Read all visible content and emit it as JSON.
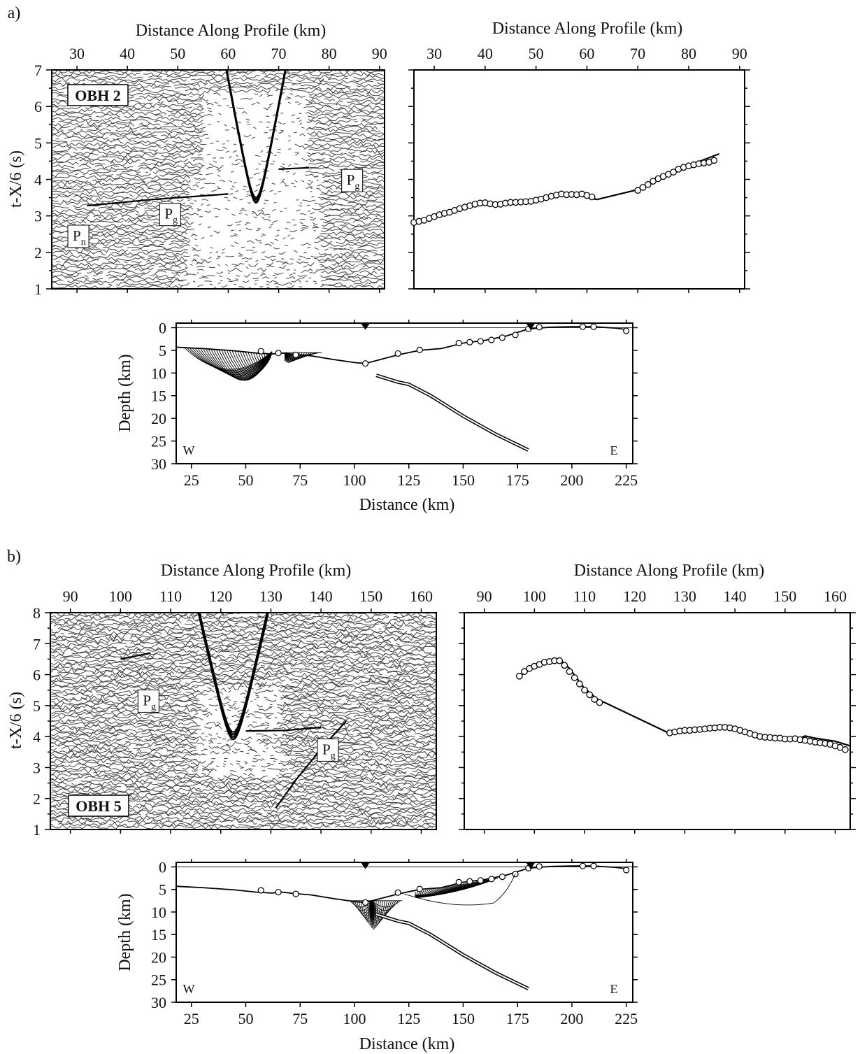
{
  "figure": {
    "panels": [
      {
        "label": "a)",
        "obh": "OBH 2",
        "top_axis_label": "Distance Along Profile (km)",
        "y_axis_label": "t-X/6 (s)",
        "phases": [
          {
            "main": "P",
            "sub": "n"
          },
          {
            "main": "P",
            "sub": "g"
          },
          {
            "main": "P",
            "sub": "g"
          }
        ],
        "depth_axis_label": "Depth (km)",
        "distance_axis_label": "Distance (km)",
        "west": "W",
        "east": "E"
      },
      {
        "label": "b)",
        "obh": "OBH 5",
        "top_axis_label": "Distance Along Profile (km)",
        "y_axis_label": "t-X/6 (s)",
        "phases": [
          {
            "main": "P",
            "sub": "g"
          },
          {
            "main": "P",
            "sub": "g"
          }
        ],
        "depth_axis_label": "Depth (km)",
        "distance_axis_label": "Distance (km)",
        "west": "W",
        "east": "E"
      }
    ]
  },
  "chart_data": [
    {
      "type": "scatter",
      "panel": "a",
      "role": "seismic record section",
      "xlabel": "Distance Along Profile (km)",
      "ylabel": "t-X/6 (s)",
      "xticks": [
        30,
        40,
        50,
        60,
        70,
        80,
        90
      ],
      "yticks": [
        1,
        2,
        3,
        4,
        5,
        6,
        7
      ],
      "xlim": [
        25,
        91
      ],
      "ylim": [
        1,
        7
      ],
      "phase_labels": [
        {
          "text": "Pn",
          "x": 30,
          "y": 2.4
        },
        {
          "text": "Pg",
          "x": 48,
          "y": 3.0
        },
        {
          "text": "Pg",
          "x": 84,
          "y": 3.9
        }
      ]
    },
    {
      "type": "scatter",
      "panel": "a",
      "role": "observed and calculated travel times",
      "xlabel": "Distance Along Profile (km)",
      "xticks": [
        30,
        40,
        50,
        60,
        70,
        80,
        90
      ],
      "xlim": [
        26,
        91
      ],
      "ylim": [
        1,
        7
      ],
      "picks": {
        "x": [
          26,
          27,
          28,
          29,
          30,
          31,
          32,
          33,
          34,
          35,
          36,
          37,
          38,
          39,
          40,
          41,
          42,
          43,
          44,
          45,
          46,
          47,
          48,
          49,
          50,
          51,
          52,
          53,
          54,
          55,
          56,
          57,
          58,
          59,
          60,
          61,
          70,
          71,
          72,
          73,
          74,
          75,
          76,
          77,
          78,
          79,
          80,
          81,
          82,
          83,
          84,
          85
        ],
        "y": [
          2.82,
          2.85,
          2.88,
          2.93,
          2.98,
          3.03,
          3.07,
          3.1,
          3.15,
          3.2,
          3.24,
          3.28,
          3.32,
          3.35,
          3.36,
          3.33,
          3.31,
          3.32,
          3.35,
          3.37,
          3.37,
          3.38,
          3.39,
          3.4,
          3.43,
          3.46,
          3.5,
          3.54,
          3.57,
          3.6,
          3.58,
          3.59,
          3.58,
          3.6,
          3.56,
          3.52,
          3.7,
          3.78,
          3.86,
          3.95,
          4.02,
          4.08,
          4.14,
          4.2,
          4.28,
          4.33,
          4.37,
          4.4,
          4.43,
          4.45,
          4.47,
          4.52
        ]
      },
      "calculated": [
        {
          "x": [
            26,
            35,
            40,
            45,
            50,
            55,
            58,
            60,
            62
          ],
          "y": [
            2.82,
            3.2,
            3.34,
            3.35,
            3.42,
            3.56,
            3.6,
            3.5,
            3.45
          ]
        },
        {
          "x": [
            62,
            70,
            75,
            80,
            86
          ],
          "y": [
            3.45,
            3.72,
            4.1,
            4.38,
            4.7
          ]
        }
      ]
    },
    {
      "type": "line",
      "panel": "a",
      "role": "ray-tracing depth model",
      "xlabel": "Distance (km)",
      "ylabel": "Depth (km)",
      "xticks": [
        25,
        50,
        75,
        100,
        125,
        150,
        175,
        200,
        225
      ],
      "yticks": [
        0,
        5,
        10,
        15,
        20,
        25,
        30
      ],
      "xlim": [
        18,
        228
      ],
      "ylim": [
        30,
        -1
      ],
      "seafloor": {
        "x": [
          18,
          30,
          45,
          55,
          62,
          67,
          72,
          80,
          90,
          100,
          105,
          120,
          130,
          140,
          150,
          160,
          170,
          180,
          190,
          200,
          210,
          220,
          225
        ],
        "y": [
          4.3,
          4.6,
          5.1,
          5.6,
          5.8,
          5.6,
          5.9,
          6.2,
          7.0,
          7.7,
          7.9,
          6.0,
          5.0,
          4.6,
          3.4,
          2.8,
          1.8,
          0.3,
          -0.1,
          -0.2,
          -0.2,
          0.1,
          0.4
        ]
      },
      "moho": {
        "x": [
          110,
          120,
          125,
          135,
          150,
          165,
          180
        ],
        "y": [
          10.5,
          12,
          12.5,
          15,
          19.5,
          23.5,
          27
        ]
      },
      "nodes": {
        "x": [
          57,
          65,
          73,
          105,
          120,
          130,
          148,
          153,
          158,
          163,
          168,
          174,
          180,
          185,
          205,
          210,
          225
        ],
        "y": [
          5.2,
          5.6,
          6.0,
          7.9,
          5.7,
          4.9,
          3.4,
          3.2,
          3.0,
          2.7,
          2.2,
          1.6,
          0.3,
          -0.1,
          -0.2,
          -0.2,
          0.7
        ]
      },
      "obs": [
        105,
        181
      ]
    },
    {
      "type": "scatter",
      "panel": "b",
      "role": "seismic record section",
      "xlabel": "Distance Along Profile (km)",
      "ylabel": "t-X/6 (s)",
      "xticks": [
        90,
        100,
        110,
        120,
        130,
        140,
        150,
        160
      ],
      "yticks": [
        1,
        2,
        3,
        4,
        5,
        6,
        7,
        8
      ],
      "xlim": [
        86,
        163
      ],
      "ylim": [
        1,
        8
      ],
      "phase_labels": [
        {
          "text": "Pg",
          "x": 106,
          "y": 5.1
        },
        {
          "text": "Pg",
          "x": 141,
          "y": 3.5
        }
      ]
    },
    {
      "type": "scatter",
      "panel": "b",
      "role": "observed and calculated travel times",
      "xlabel": "Distance Along Profile (km)",
      "xticks": [
        90,
        100,
        110,
        120,
        130,
        140,
        150,
        160
      ],
      "xlim": [
        86,
        163
      ],
      "ylim": [
        1,
        8
      ],
      "picks": {
        "x": [
          97,
          98,
          99,
          100,
          101,
          102,
          103,
          104,
          105,
          106,
          107,
          108,
          109,
          110,
          111,
          112,
          113,
          127,
          128,
          129,
          130,
          131,
          132,
          133,
          134,
          135,
          136,
          137,
          138,
          139,
          140,
          141,
          142,
          143,
          144,
          145,
          146,
          147,
          148,
          149,
          150,
          151,
          152,
          153,
          154,
          155,
          156,
          157,
          158,
          159,
          160,
          161,
          162
        ],
        "y": [
          5.95,
          6.1,
          6.2,
          6.27,
          6.33,
          6.4,
          6.42,
          6.45,
          6.45,
          6.3,
          6.1,
          5.9,
          5.7,
          5.5,
          5.35,
          5.2,
          5.1,
          4.12,
          4.15,
          4.18,
          4.2,
          4.2,
          4.22,
          4.23,
          4.25,
          4.27,
          4.28,
          4.3,
          4.3,
          4.28,
          4.25,
          4.2,
          4.15,
          4.1,
          4.05,
          4.0,
          3.98,
          3.97,
          3.95,
          3.95,
          3.92,
          3.92,
          3.93,
          3.9,
          3.88,
          3.85,
          3.82,
          3.8,
          3.78,
          3.75,
          3.7,
          3.65,
          3.58
        ]
      },
      "calculated": [
        {
          "x": [
            97,
            100,
            103,
            105,
            107,
            110,
            113,
            114
          ],
          "y": [
            5.95,
            6.25,
            6.42,
            6.5,
            6.2,
            5.55,
            5.15,
            5.1
          ]
        },
        {
          "x": [
            114,
            127
          ],
          "y": [
            5.1,
            4.1
          ]
        },
        {
          "x": [
            127,
            135,
            140,
            145,
            150,
            153,
            154,
            156,
            160,
            163
          ],
          "y": [
            4.1,
            4.22,
            4.28,
            4.0,
            3.92,
            3.95,
            4.02,
            3.95,
            3.85,
            3.7
          ]
        }
      ]
    },
    {
      "type": "line",
      "panel": "b",
      "role": "ray-tracing depth model",
      "xlabel": "Distance (km)",
      "ylabel": "Depth (km)",
      "xticks": [
        25,
        50,
        75,
        100,
        125,
        150,
        175,
        200,
        225
      ],
      "yticks": [
        0,
        5,
        10,
        15,
        20,
        25,
        30
      ],
      "xlim": [
        18,
        228
      ],
      "ylim": [
        30,
        -1
      ],
      "seafloor": {
        "x": [
          18,
          30,
          45,
          55,
          62,
          67,
          72,
          80,
          90,
          100,
          105,
          120,
          130,
          140,
          150,
          160,
          170,
          180,
          190,
          200,
          210,
          220,
          225
        ],
        "y": [
          4.3,
          4.6,
          5.1,
          5.6,
          5.8,
          5.6,
          5.9,
          6.2,
          7.0,
          7.7,
          7.9,
          6.0,
          5.0,
          4.6,
          3.4,
          2.8,
          1.8,
          0.3,
          -0.1,
          -0.2,
          -0.2,
          0.1,
          0.4
        ]
      },
      "moho": {
        "x": [
          110,
          120,
          125,
          135,
          150,
          165,
          180
        ],
        "y": [
          10.5,
          12,
          12.5,
          15,
          19.5,
          23.5,
          27
        ]
      },
      "nodes": {
        "x": [
          57,
          65,
          73,
          105,
          120,
          130,
          148,
          153,
          158,
          163,
          168,
          174,
          180,
          185,
          205,
          210,
          225
        ],
        "y": [
          5.2,
          5.6,
          6.0,
          7.9,
          5.7,
          4.9,
          3.4,
          3.2,
          3.0,
          2.7,
          2.2,
          1.6,
          0.3,
          -0.1,
          -0.2,
          -0.2,
          0.7
        ]
      },
      "obs": [
        105,
        181
      ]
    }
  ]
}
